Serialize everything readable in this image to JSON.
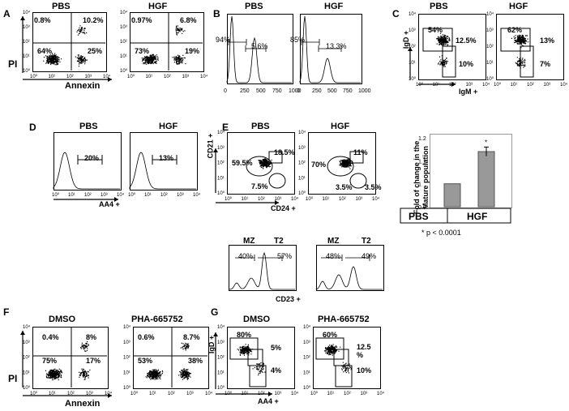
{
  "panels": {
    "A": {
      "letter": "A",
      "left": "PBS",
      "right": "HGF",
      "ylabel": "PI",
      "xlabel": "Annexin",
      "pbs": [
        "0.8%",
        "10.2%",
        "64%",
        "25%"
      ],
      "hgf": [
        "0.97%",
        "6.8%",
        "73%",
        "19%"
      ]
    },
    "B": {
      "letter": "B",
      "left": "PBS",
      "right": "HGF",
      "pbs": [
        "94%",
        "5.6%"
      ],
      "hgf": [
        "85%",
        "13.3%"
      ],
      "ticks": [
        "0",
        "250",
        "500",
        "750",
        "1000"
      ]
    },
    "C": {
      "letter": "C",
      "left": "PBS",
      "right": "HGF",
      "ylabel": "IgD +",
      "xlabel": "IgM +",
      "pbs": [
        "54%",
        "12.5%",
        "10%"
      ],
      "hgf": [
        "62%",
        "13%",
        "7%"
      ]
    },
    "D": {
      "letter": "D",
      "left": "PBS",
      "right": "HGF",
      "xlabel": "AA4 +",
      "pbs": [
        "20%"
      ],
      "hgf": [
        "13%"
      ]
    },
    "E": {
      "letter": "E",
      "left": "PBS",
      "right": "HGF",
      "ylabel": "CD21 +",
      "xlabel": "CD24 +",
      "pbs": [
        "59.5%",
        "18.5%",
        "7.5%"
      ],
      "hgf": [
        "70%",
        "11%",
        "3.5%",
        "3.5%"
      ],
      "hist_xlabel": "CD23 +",
      "mz": "MZ",
      "t2": "T2",
      "pbs_hist": [
        "40%",
        "57%"
      ],
      "hgf_hist": [
        "48%",
        "49%"
      ]
    },
    "bar": {
      "ylabel": "Fold of change in the Mature population",
      "footnote": "* p < 0.0001",
      "star": "*"
    },
    "F": {
      "letter": "F",
      "left": "DMSO",
      "right": "PHA-665752",
      "ylabel": "PI",
      "xlabel": "Annexin",
      "dmso": [
        "0.4%",
        "8%",
        "75%",
        "17%"
      ],
      "pha": [
        "0.6%",
        "8.7%",
        "53%",
        "38%"
      ]
    },
    "G": {
      "letter": "G",
      "left": "DMSO",
      "right": "PHA-665752",
      "ylabel": "IgD +",
      "xlabel": "AA4 +",
      "dmso": [
        "80%",
        "5%",
        "4%"
      ],
      "pha": [
        "60%",
        "12.5 %",
        "10%"
      ]
    }
  },
  "chart_data": {
    "type": "bar",
    "categories": [
      "PBS",
      "HGF"
    ],
    "values": [
      1.0,
      1.14
    ],
    "errors": [
      0,
      0.02
    ],
    "ylabel": "Fold of change in the Mature population",
    "ylim": [
      0.9,
      1.2
    ],
    "yticks": [
      "0.9",
      "1",
      "1.1",
      "1.2"
    ],
    "annotation": "*",
    "footnote": "* p < 0.0001"
  }
}
